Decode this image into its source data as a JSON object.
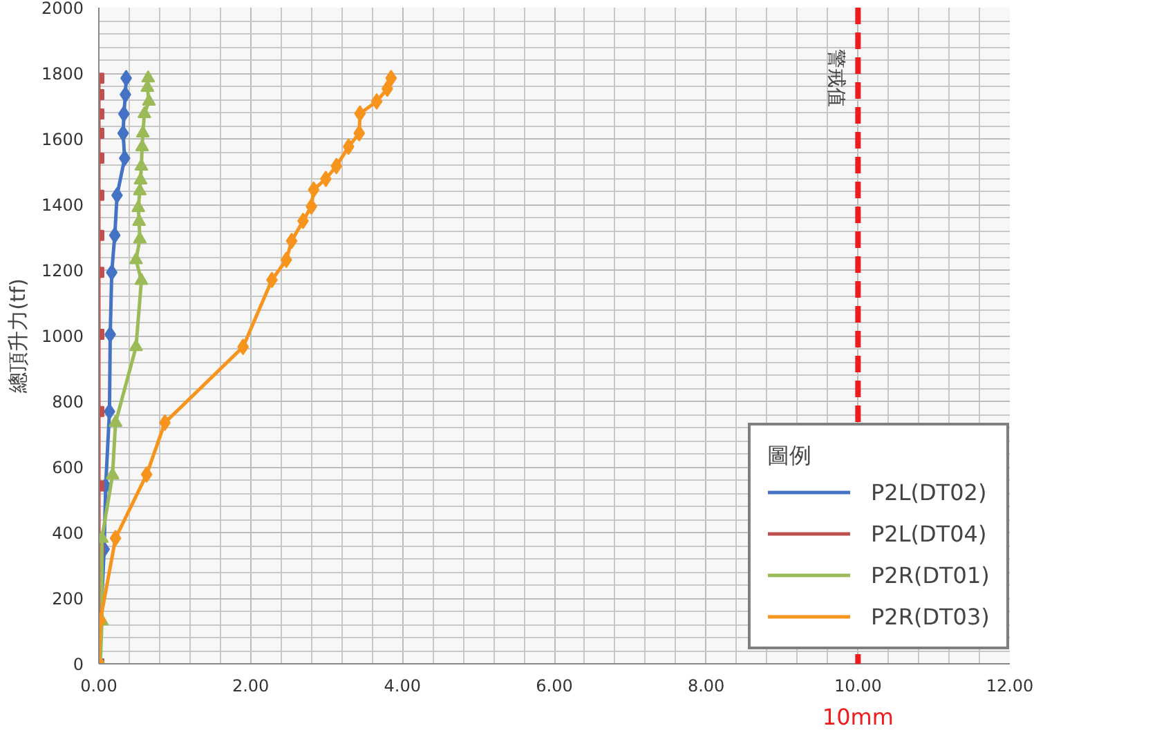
{
  "chart_data": {
    "type": "line",
    "ylabel": "總頂升力(tf)",
    "legend_title": "圖例",
    "legend": "right",
    "grid": true,
    "xlim": [
      0,
      12
    ],
    "xticks": [
      {
        "value": 0,
        "label": "0.00"
      },
      {
        "value": 2,
        "label": "2.00"
      },
      {
        "value": 4,
        "label": "4.00"
      },
      {
        "value": 6,
        "label": "6.00"
      },
      {
        "value": 8,
        "label": "8.00"
      },
      {
        "value": 10,
        "label": "10.00"
      },
      {
        "value": 12,
        "label": "12.00"
      }
    ],
    "ylim": [
      0,
      2000
    ],
    "yticks": [
      0,
      200,
      400,
      600,
      800,
      1000,
      1200,
      1400,
      1600,
      1800,
      2000
    ],
    "ref_lines": [
      {
        "axis": "x",
        "value": 10,
        "label": "警戒值",
        "color": "#ee1c1c",
        "line_style": "dashed"
      }
    ],
    "annotations": [
      "10mm"
    ],
    "series": [
      {
        "name": "P2L(DT02)",
        "color": "#4472c4",
        "marker": "diamond",
        "x": [
          0.36,
          0.35,
          0.33,
          0.32,
          0.34,
          0.24,
          0.21,
          0.17,
          0.15,
          0.14,
          0.09,
          0.07,
          0
        ],
        "values": [
          1785,
          1735,
          1676,
          1617,
          1541,
          1428,
          1306,
          1193,
          1004,
          769,
          542,
          349,
          0
        ]
      },
      {
        "name": "P2L(DT04)",
        "color": "#c0504d",
        "marker": "square",
        "x": [
          0,
          0,
          0,
          0,
          0,
          0,
          0,
          0,
          0,
          0,
          0,
          0,
          0
        ],
        "values": [
          1785,
          1735,
          1676,
          1617,
          1541,
          1428,
          1306,
          1193,
          1004,
          769,
          542,
          349,
          0
        ]
      },
      {
        "name": "P2R(DT01)",
        "color": "#9bbb59",
        "marker": "triangle",
        "x": [
          0.65,
          0.64,
          0.66,
          0.6,
          0.58,
          0.57,
          0.56,
          0.55,
          0.54,
          0.52,
          0.53,
          0.54,
          0.49,
          0.56,
          0.49,
          0.22,
          0.18,
          0.04,
          0.04,
          0.02
        ],
        "values": [
          1785,
          1756,
          1714,
          1676,
          1617,
          1575,
          1516,
          1474,
          1441,
          1390,
          1348,
          1294,
          1231,
          1168,
          966,
          735,
          575,
          382,
          130,
          0
        ]
      },
      {
        "name": "P2R(DT03)",
        "color": "#f7941d",
        "marker": "diamond",
        "x": [
          3.85,
          3.8,
          3.66,
          3.44,
          3.43,
          3.29,
          3.13,
          2.99,
          2.83,
          2.8,
          2.69,
          2.54,
          2.47,
          2.28,
          1.9,
          0.87,
          0.63,
          0.22,
          0.02,
          0
        ],
        "values": [
          1785,
          1753,
          1714,
          1677,
          1617,
          1576,
          1517,
          1478,
          1445,
          1394,
          1350,
          1289,
          1231,
          1170,
          966,
          735,
          577,
          383,
          132,
          0
        ]
      }
    ]
  }
}
